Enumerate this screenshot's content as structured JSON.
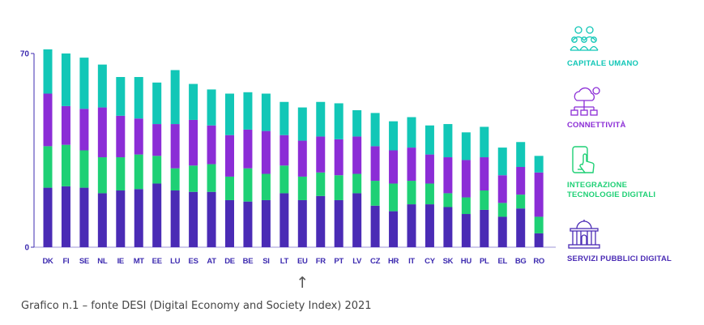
{
  "caption": "Grafico n.1 – fonte DESI (Digital Economy and Society Index) 2021",
  "colors": {
    "capitale_umano": "#12c7b7",
    "connettivita": "#8b2dd6",
    "integrazione": "#1ed075",
    "servizi": "#4a2bb5",
    "axis": "#3d2bb0"
  },
  "legend": [
    {
      "key": "capitale_umano",
      "label": "CAPITALE UMANO",
      "icon": "people-group-icon",
      "color": "#12c7b7"
    },
    {
      "key": "connettivita",
      "label": "CONNETTIVITÀ",
      "icon": "cloud-network-icon",
      "color": "#8b2dd6"
    },
    {
      "key": "integrazione",
      "label": "INTEGRAZIONE\nTECNOLOGIE DIGITALI",
      "icon": "touch-smartphone-icon",
      "color": "#1ed075"
    },
    {
      "key": "servizi",
      "label": "SERVIZI PUBBLICI DIGITAL",
      "icon": "government-building-icon",
      "color": "#4a2bb5"
    }
  ],
  "chart_data": {
    "type": "bar",
    "stacked": true,
    "categories": [
      "DK",
      "FI",
      "SE",
      "NL",
      "IE",
      "MT",
      "EE",
      "LU",
      "ES",
      "AT",
      "DE",
      "BE",
      "SI",
      "LT",
      "EU",
      "FR",
      "PT",
      "LV",
      "CZ",
      "HR",
      "IT",
      "CY",
      "SK",
      "HU",
      "PL",
      "EL",
      "BG",
      "RO"
    ],
    "series": [
      {
        "name": "SERVIZI PUBBLICI DIGITAL",
        "key": "servizi",
        "color": "#4a2bb5",
        "values": [
          21.5,
          22,
          21.5,
          19.5,
          20.5,
          21,
          23,
          20.5,
          20,
          20,
          17,
          16.5,
          17,
          19.5,
          17,
          18.5,
          17,
          19.5,
          15,
          13,
          15.5,
          15.5,
          14.5,
          12,
          13.5,
          11,
          14,
          5
        ]
      },
      {
        "name": "INTEGRAZIONE TECNOLOGIE DIGITALI",
        "key": "integrazione",
        "color": "#1ed075",
        "values": [
          15,
          15,
          13.5,
          13,
          12,
          12.5,
          10,
          8,
          9.5,
          10,
          8.5,
          12,
          9.5,
          10,
          8.5,
          8.5,
          9,
          7,
          9,
          10,
          8.5,
          7.5,
          5,
          6,
          7,
          5,
          5,
          6
        ]
      },
      {
        "name": "CONNETTIVITÀ",
        "key": "connettivita",
        "color": "#8b2dd6",
        "values": [
          19,
          14,
          15,
          18,
          15,
          13,
          11.5,
          16,
          16.5,
          14,
          15,
          14,
          15.5,
          11,
          13,
          13,
          13,
          13.5,
          12.5,
          12,
          12,
          10.5,
          13,
          13.5,
          12,
          10,
          10,
          16
        ]
      },
      {
        "name": "CAPITALE UMANO",
        "key": "capitale_umano",
        "color": "#12c7b7",
        "values": [
          16,
          19,
          18.5,
          15.5,
          14,
          15,
          15,
          19.5,
          13,
          13,
          15,
          13.5,
          13.5,
          12,
          12,
          12.5,
          13,
          9.5,
          12,
          10.5,
          11,
          10.5,
          12,
          10,
          11,
          10,
          9,
          6
        ]
      }
    ],
    "ylim": [
      0,
      70
    ],
    "yticks": [
      0,
      70
    ],
    "highlight": {
      "category": "EU",
      "marker": "↑"
    }
  }
}
